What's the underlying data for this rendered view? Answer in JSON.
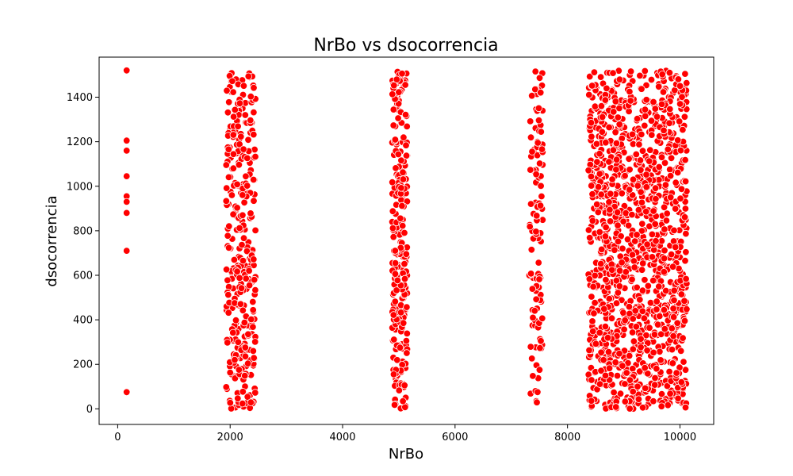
{
  "chart_data": {
    "type": "scatter",
    "title": "NrBo vs dsocorrencia",
    "xlabel": "NrBo",
    "ylabel": "dsocorrencia",
    "xlim": [
      -330,
      10600
    ],
    "ylim": [
      -70,
      1580
    ],
    "xticks": [
      0,
      2000,
      4000,
      6000,
      8000,
      10000
    ],
    "yticks": [
      0,
      200,
      400,
      600,
      800,
      1000,
      1200,
      1400
    ],
    "xtick_labels": [
      "0",
      "2000",
      "4000",
      "6000",
      "8000",
      "10000"
    ],
    "ytick_labels": [
      "0",
      "200",
      "400",
      "600",
      "800",
      "1000",
      "1200",
      "1400"
    ],
    "marker_color": "#ff0000",
    "marker_edge": "#ffffff",
    "grid": false,
    "legend": false,
    "series": [
      {
        "points": [
          [
            160,
            1520
          ],
          [
            160,
            1205
          ],
          [
            160,
            1160
          ],
          [
            160,
            1045
          ],
          [
            160,
            955
          ],
          [
            160,
            930
          ],
          [
            160,
            880
          ],
          [
            160,
            710
          ],
          [
            160,
            75
          ]
        ]
      }
    ],
    "clusters": [
      {
        "x_min": 1930,
        "x_max": 2450,
        "count": 330
      },
      {
        "x_min": 4880,
        "x_max": 5150,
        "count": 250
      },
      {
        "x_min": 7320,
        "x_max": 7560,
        "count": 110
      },
      {
        "x_min": 8370,
        "x_max": 10120,
        "count": 1250
      }
    ]
  }
}
